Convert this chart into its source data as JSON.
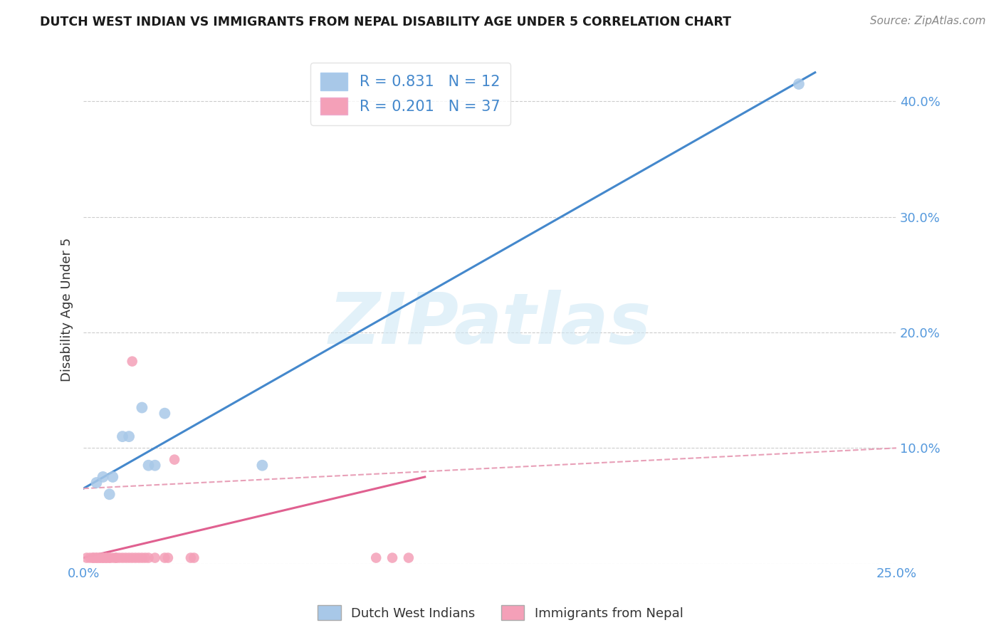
{
  "title": "DUTCH WEST INDIAN VS IMMIGRANTS FROM NEPAL DISABILITY AGE UNDER 5 CORRELATION CHART",
  "source": "Source: ZipAtlas.com",
  "ylabel_label": "Disability Age Under 5",
  "x_min": 0.0,
  "x_max": 0.25,
  "y_min": 0.0,
  "y_max": 0.44,
  "x_ticks": [
    0.0,
    0.05,
    0.1,
    0.15,
    0.2,
    0.25
  ],
  "x_tick_labels": [
    "0.0%",
    "",
    "",
    "",
    "",
    "25.0%"
  ],
  "y_ticks": [
    0.0,
    0.1,
    0.2,
    0.3,
    0.4
  ],
  "y_tick_labels": [
    "",
    "10.0%",
    "20.0%",
    "30.0%",
    "40.0%"
  ],
  "blue_R": 0.831,
  "blue_N": 12,
  "pink_R": 0.201,
  "pink_N": 37,
  "blue_color": "#a8c8e8",
  "pink_color": "#f4a0b8",
  "blue_line_color": "#4488cc",
  "pink_line_color": "#e06090",
  "pink_dashed_color": "#e8a0b8",
  "watermark": "ZIPatlas",
  "legend_label_blue": "Dutch West Indians",
  "legend_label_pink": "Immigrants from Nepal",
  "blue_scatter_x": [
    0.004,
    0.006,
    0.008,
    0.009,
    0.012,
    0.014,
    0.018,
    0.02,
    0.022,
    0.025,
    0.055,
    0.22
  ],
  "blue_scatter_y": [
    0.07,
    0.075,
    0.06,
    0.075,
    0.11,
    0.11,
    0.135,
    0.085,
    0.085,
    0.13,
    0.085,
    0.415
  ],
  "pink_scatter_x": [
    0.001,
    0.002,
    0.003,
    0.003,
    0.004,
    0.004,
    0.005,
    0.005,
    0.006,
    0.006,
    0.007,
    0.007,
    0.008,
    0.008,
    0.009,
    0.01,
    0.01,
    0.011,
    0.012,
    0.013,
    0.014,
    0.015,
    0.015,
    0.016,
    0.017,
    0.018,
    0.019,
    0.02,
    0.022,
    0.025,
    0.026,
    0.028,
    0.033,
    0.034,
    0.09,
    0.095,
    0.1
  ],
  "pink_scatter_y": [
    0.005,
    0.005,
    0.005,
    0.005,
    0.005,
    0.005,
    0.005,
    0.005,
    0.005,
    0.005,
    0.005,
    0.005,
    0.005,
    0.005,
    0.005,
    0.005,
    0.005,
    0.005,
    0.005,
    0.005,
    0.005,
    0.005,
    0.175,
    0.005,
    0.005,
    0.005,
    0.005,
    0.005,
    0.005,
    0.005,
    0.005,
    0.09,
    0.005,
    0.005,
    0.005,
    0.005,
    0.005
  ],
  "blue_line_x": [
    0.0,
    0.225
  ],
  "blue_line_y": [
    0.065,
    0.425
  ],
  "pink_solid_line_x": [
    0.0,
    0.105
  ],
  "pink_solid_line_y": [
    0.005,
    0.075
  ],
  "pink_dashed_line_x": [
    0.0,
    0.25
  ],
  "pink_dashed_line_y": [
    0.065,
    0.1
  ],
  "title_fontsize": 12.5,
  "tick_fontsize": 13,
  "ylabel_fontsize": 13
}
